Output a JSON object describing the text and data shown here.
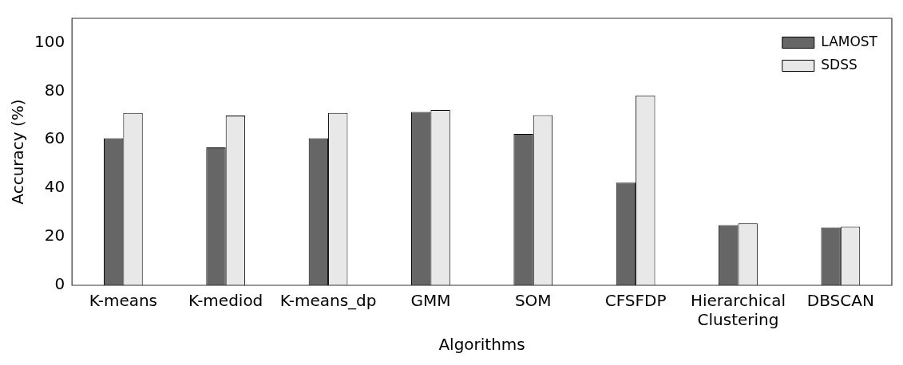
{
  "chart_data": {
    "type": "bar",
    "xlabel": "Algorithms",
    "ylabel": "Accuracy (%)",
    "categories": [
      "K-means",
      "K-mediod",
      "K-means_dp",
      "GMM",
      "SOM",
      "CFSFDP",
      "Hierarchical\nClustering",
      "DBSCAN"
    ],
    "series": [
      {
        "name": "LAMOST",
        "color": "#666666",
        "values": [
          60.6,
          56.8,
          60.6,
          71.4,
          62.4,
          42.3,
          24.8,
          23.8
        ]
      },
      {
        "name": "SDSS",
        "color": "#e8e8e8",
        "values": [
          71.0,
          69.9,
          71.0,
          72.2,
          70.1,
          78.2,
          25.5,
          24.1
        ]
      }
    ],
    "ylim": [
      0,
      110
    ],
    "yticks": [
      0,
      20,
      40,
      60,
      80,
      100
    ],
    "grid": false,
    "legend": "top right"
  }
}
